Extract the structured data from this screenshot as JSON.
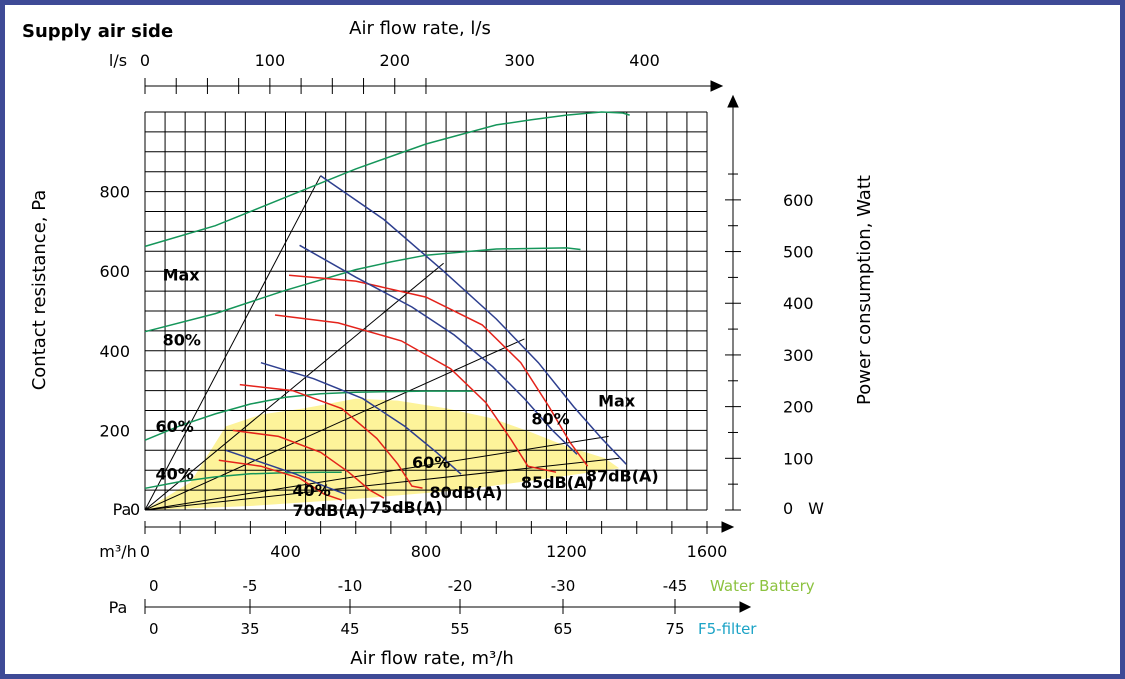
{
  "title": "Supply air side",
  "top_axis": {
    "title": "Air flow rate, l/s",
    "unit": "l/s",
    "ticks": [
      "0",
      "100",
      "200",
      "300",
      "400"
    ]
  },
  "bottom_axis": {
    "title": "Air flow rate, m³/h",
    "unit": "m³/h",
    "ticks": [
      "0",
      "400",
      "800",
      "1200",
      "1600"
    ]
  },
  "left_axis": {
    "title": "Contact resistance, Pa",
    "unit": "Pa",
    "ticks": [
      "0",
      "200",
      "400",
      "600",
      "800"
    ]
  },
  "right_axis": {
    "title": "Power consumption, Watt",
    "unit": "W",
    "ticks": [
      "0",
      "100",
      "200",
      "300",
      "400",
      "500",
      "600"
    ]
  },
  "pressure_scales": {
    "unit": "Pa",
    "water_battery": {
      "label": "Water Battery",
      "color": "#8cc23f",
      "ticks": [
        "0",
        "-5",
        "-10",
        "-20",
        "-30",
        "-45"
      ]
    },
    "filter": {
      "label": "F5-filter",
      "color": "#1ba3c6",
      "ticks": [
        "0",
        "35",
        "45",
        "55",
        "65",
        "75"
      ]
    }
  },
  "colors": {
    "frame": "#3e4a96",
    "fan_curve": "#2e3f8f",
    "power_curve": "#15965a",
    "sound_curve": "#e4231b",
    "operating_area": "#fdf39a"
  },
  "chart_data": {
    "type": "line",
    "title": "Supply air side",
    "xlabel": "Air flow rate, m³/h",
    "ylabel": "Contact resistance, Pa",
    "x2label": "Air flow rate, l/s",
    "y2label": "Power consumption, Watt",
    "xlim": [
      0,
      1600
    ],
    "ylim": [
      0,
      1000
    ],
    "y2lim": [
      0,
      770
    ],
    "grid": true,
    "fan_curves": [
      {
        "name": "Max",
        "points": [
          [
            500,
            840
          ],
          [
            680,
            730
          ],
          [
            850,
            600
          ],
          [
            1000,
            480
          ],
          [
            1120,
            370
          ],
          [
            1220,
            260
          ],
          [
            1300,
            180
          ],
          [
            1370,
            115
          ]
        ]
      },
      {
        "name": "80%",
        "points": [
          [
            440,
            665
          ],
          [
            600,
            585
          ],
          [
            760,
            510
          ],
          [
            880,
            440
          ],
          [
            990,
            360
          ],
          [
            1080,
            280
          ],
          [
            1160,
            200
          ],
          [
            1230,
            140
          ]
        ]
      },
      {
        "name": "60%",
        "points": [
          [
            330,
            370
          ],
          [
            480,
            330
          ],
          [
            620,
            280
          ],
          [
            740,
            210
          ],
          [
            830,
            145
          ],
          [
            900,
            90
          ]
        ]
      },
      {
        "name": "40%",
        "points": [
          [
            230,
            150
          ],
          [
            330,
            120
          ],
          [
            430,
            90
          ],
          [
            510,
            60
          ],
          [
            570,
            40
          ]
        ]
      }
    ],
    "power_curves": [
      {
        "name": "Max",
        "points": [
          [
            0,
            510
          ],
          [
            200,
            550
          ],
          [
            400,
            605
          ],
          [
            600,
            660
          ],
          [
            800,
            708
          ],
          [
            1000,
            745
          ],
          [
            1100,
            755
          ],
          [
            1200,
            764
          ],
          [
            1300,
            770
          ],
          [
            1360,
            768
          ],
          [
            1380,
            764
          ]
        ]
      },
      {
        "name": "80%",
        "points": [
          [
            0,
            345
          ],
          [
            200,
            380
          ],
          [
            400,
            425
          ],
          [
            600,
            465
          ],
          [
            700,
            480
          ],
          [
            800,
            493
          ],
          [
            1000,
            505
          ],
          [
            1200,
            507
          ],
          [
            1240,
            504
          ]
        ]
      },
      {
        "name": "60%",
        "points": [
          [
            0,
            135
          ],
          [
            100,
            163
          ],
          [
            200,
            186
          ],
          [
            300,
            205
          ],
          [
            400,
            218
          ],
          [
            500,
            225
          ],
          [
            600,
            228
          ],
          [
            800,
            230
          ],
          [
            940,
            230
          ]
        ]
      },
      {
        "name": "40%",
        "points": [
          [
            0,
            42
          ],
          [
            100,
            55
          ],
          [
            200,
            64
          ],
          [
            300,
            70
          ],
          [
            400,
            72
          ],
          [
            500,
            73
          ],
          [
            560,
            73
          ]
        ]
      }
    ],
    "sound_curves": [
      {
        "name": "87dB(A)",
        "points": [
          [
            410,
            590
          ],
          [
            600,
            575
          ],
          [
            800,
            535
          ],
          [
            960,
            465
          ],
          [
            1070,
            370
          ],
          [
            1150,
            260
          ],
          [
            1210,
            170
          ],
          [
            1260,
            110
          ]
        ]
      },
      {
        "name": "85dB(A)",
        "points": [
          [
            370,
            490
          ],
          [
            550,
            470
          ],
          [
            730,
            425
          ],
          [
            870,
            355
          ],
          [
            970,
            270
          ],
          [
            1040,
            180
          ],
          [
            1090,
            110
          ],
          [
            1170,
            95
          ]
        ]
      },
      {
        "name": "80dB(A)",
        "points": [
          [
            270,
            315
          ],
          [
            420,
            300
          ],
          [
            560,
            255
          ],
          [
            660,
            180
          ],
          [
            720,
            115
          ],
          [
            760,
            60
          ],
          [
            790,
            55
          ]
        ]
      },
      {
        "name": "75dB(A)",
        "points": [
          [
            250,
            200
          ],
          [
            380,
            185
          ],
          [
            500,
            145
          ],
          [
            580,
            95
          ],
          [
            640,
            50
          ],
          [
            680,
            30
          ]
        ]
      },
      {
        "name": "70dB(A)",
        "points": [
          [
            210,
            125
          ],
          [
            330,
            110
          ],
          [
            440,
            80
          ],
          [
            510,
            40
          ],
          [
            560,
            25
          ]
        ]
      }
    ],
    "system_lines": [
      {
        "points": [
          [
            0,
            0
          ],
          [
            500,
            840
          ]
        ]
      },
      {
        "points": [
          [
            0,
            0
          ],
          [
            850,
            620
          ]
        ]
      },
      {
        "points": [
          [
            0,
            0
          ],
          [
            1080,
            430
          ]
        ]
      },
      {
        "points": [
          [
            0,
            0
          ],
          [
            1320,
            185
          ]
        ]
      },
      {
        "points": [
          [
            0,
            0
          ],
          [
            1350,
            130
          ]
        ]
      }
    ],
    "operating_area": [
      [
        0,
        0
      ],
      [
        130,
        70
      ],
      [
        230,
        210
      ],
      [
        330,
        240
      ],
      [
        450,
        255
      ],
      [
        600,
        280
      ],
      [
        720,
        275
      ],
      [
        860,
        255
      ],
      [
        990,
        230
      ],
      [
        1100,
        195
      ],
      [
        1200,
        160
      ],
      [
        1310,
        130
      ],
      [
        1350,
        105
      ],
      [
        1150,
        80
      ],
      [
        900,
        50
      ],
      [
        600,
        28
      ],
      [
        300,
        10
      ],
      [
        100,
        3
      ]
    ],
    "fan_labels": [
      "Max",
      "80%",
      "60%",
      "40%"
    ],
    "curve_labels": [
      "Max",
      "80%",
      "60%",
      "40%"
    ],
    "sound_labels": [
      "87dB(A)",
      "85dB(A)",
      "80dB(A)",
      "75dB(A)",
      "70dB(A)"
    ]
  }
}
